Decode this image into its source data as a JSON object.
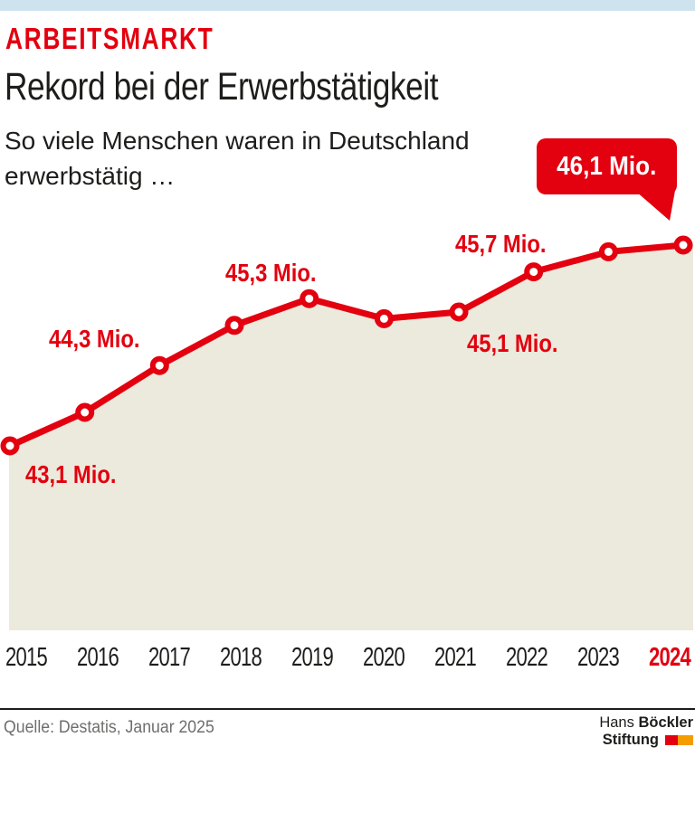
{
  "header": {
    "kicker": "ARBEITSMARKT",
    "title": "Rekord bei der Erwerbstätigkeit",
    "subtitle_line1": "So viele Menschen waren in Deutschland",
    "subtitle_line2": "erwerbstätig …"
  },
  "callout": {
    "label": "46,1 Mio."
  },
  "chart_data": {
    "type": "area",
    "title": "Erwerbstätige in Deutschland",
    "x": [
      2015,
      2016,
      2017,
      2018,
      2019,
      2020,
      2021,
      2022,
      2023,
      2024
    ],
    "values": [
      43.1,
      43.6,
      44.3,
      44.9,
      45.3,
      45.0,
      45.1,
      45.7,
      46.0,
      46.1
    ],
    "unit": "Mio.",
    "ylim": [
      43.1,
      46.1
    ],
    "grid": false,
    "point_labels": [
      {
        "year": 2015,
        "text": "43,1 Mio."
      },
      {
        "year": 2017,
        "text": "44,3 Mio."
      },
      {
        "year": 2019,
        "text": "45,3 Mio."
      },
      {
        "year": 2021,
        "text": "45,1 Mio."
      },
      {
        "year": 2022,
        "text": "45,7 Mio."
      },
      {
        "year": 2024,
        "text": "46,1 Mio."
      }
    ],
    "highlight_year": 2024,
    "colors": {
      "line": "#e3000f",
      "marker_fill": "#ffffff",
      "area": "#ece9dd",
      "axis_label": "#1d1d1b",
      "value_label": "#e3000f"
    }
  },
  "footer": {
    "source": "Quelle: Destatis, Januar 2025",
    "logo": {
      "name_light": "Hans",
      "name_bold": "Böckler",
      "line2_bold": "Stiftung",
      "square_red": "#e3000f",
      "square_orange": "#f59c00"
    }
  },
  "theme": {
    "topbar": "#cde4ee",
    "text": "#1d1d1b",
    "muted": "#6e6e6d",
    "background": "#ffffff"
  }
}
